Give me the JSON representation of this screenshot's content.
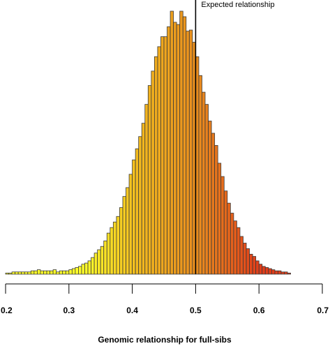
{
  "chart_data": {
    "type": "bar",
    "title": "",
    "xlabel": "Genomic relationship for full-sibs",
    "ylabel": "",
    "xlim": [
      0.2,
      0.7
    ],
    "x_ticks": [
      0.2,
      0.3,
      0.4,
      0.5,
      0.6,
      0.7
    ],
    "x_tick_labels": [
      "0.2",
      "0.3",
      "0.4",
      "0.5",
      "0.6",
      "0.7"
    ],
    "bin_width": 0.005,
    "bin_start": 0.2,
    "counts": [
      1,
      1,
      2,
      2,
      2,
      2,
      2,
      2,
      3,
      3,
      4,
      3,
      3,
      3,
      3,
      4,
      2,
      3,
      3,
      3,
      4,
      5,
      6,
      7,
      9,
      10,
      12,
      15,
      19,
      22,
      25,
      30,
      37,
      42,
      47,
      52,
      60,
      70,
      78,
      90,
      103,
      113,
      124,
      136,
      153,
      170,
      183,
      196,
      205,
      214,
      214,
      223,
      237,
      227,
      225,
      237,
      232,
      219,
      220,
      209,
      196,
      179,
      164,
      153,
      138,
      127,
      116,
      100,
      88,
      75,
      64,
      55,
      48,
      42,
      34,
      28,
      23,
      18,
      16,
      12,
      9,
      7,
      6,
      5,
      4,
      3,
      3,
      2,
      2,
      1
    ],
    "color_gradient": [
      "#ffff2a",
      "#f2b81e",
      "#e88a1e",
      "#e23e1a"
    ],
    "grid": false,
    "annotations": [
      {
        "text": "Expected relationship",
        "x": 0.5
      }
    ]
  }
}
